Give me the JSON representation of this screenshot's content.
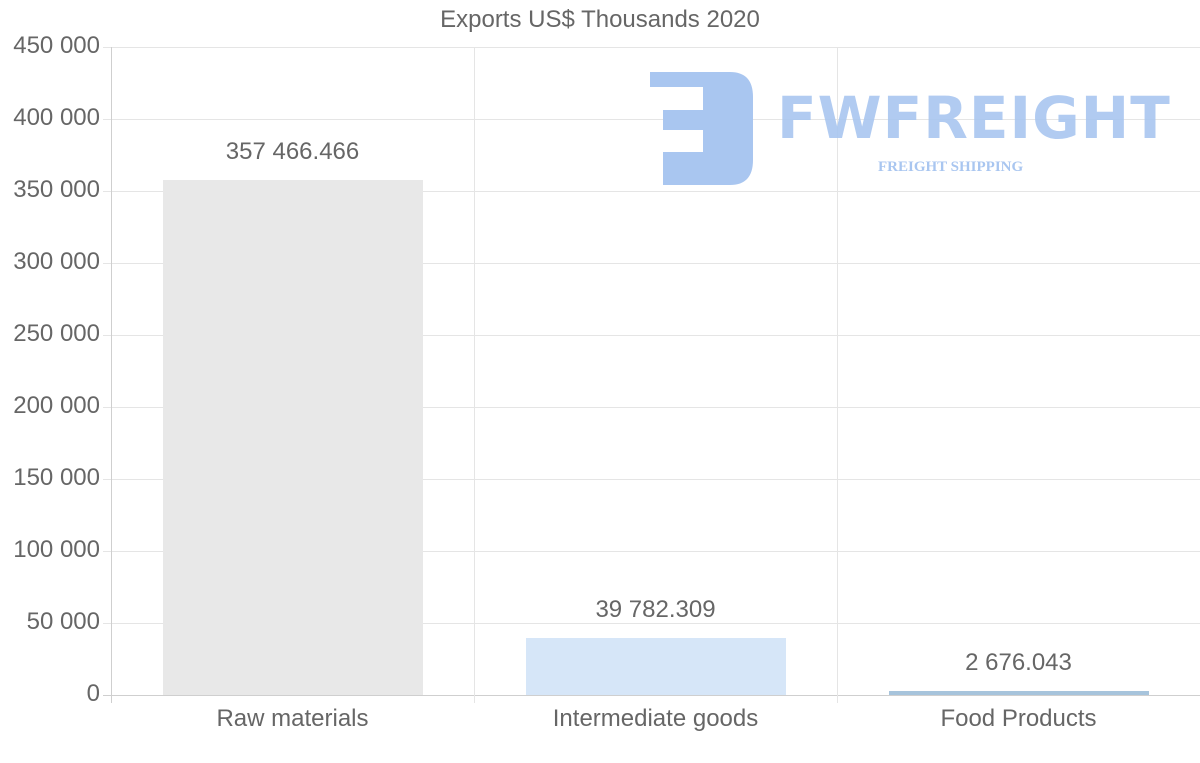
{
  "chart_data": {
    "type": "bar",
    "title": "Exports US$ Thousands 2020",
    "xlabel": "",
    "ylabel": "",
    "categories": [
      "Raw materials",
      "Intermediate goods",
      "Food Products"
    ],
    "values": [
      357466.466,
      39782.309,
      2676.043
    ],
    "value_labels": [
      "357 466.466",
      "39 782.309",
      "2 676.043"
    ],
    "bar_colors": [
      "#e8e8e8",
      "#d6e6f8",
      "#a7c4dc"
    ],
    "ylim": [
      0,
      450000
    ],
    "yticks": [
      0,
      50000,
      100000,
      150000,
      200000,
      250000,
      300000,
      350000,
      400000,
      450000
    ],
    "ytick_labels": [
      "0",
      "50 000",
      "100 000",
      "150 000",
      "200 000",
      "250 000",
      "300 000",
      "350 000",
      "400 000",
      "450 000"
    ],
    "grid": true,
    "legend": null
  },
  "watermark": {
    "brand": "FWFREIGHT",
    "tagline": "FREIGHT SHIPPING",
    "color": "#a9c6f0"
  }
}
